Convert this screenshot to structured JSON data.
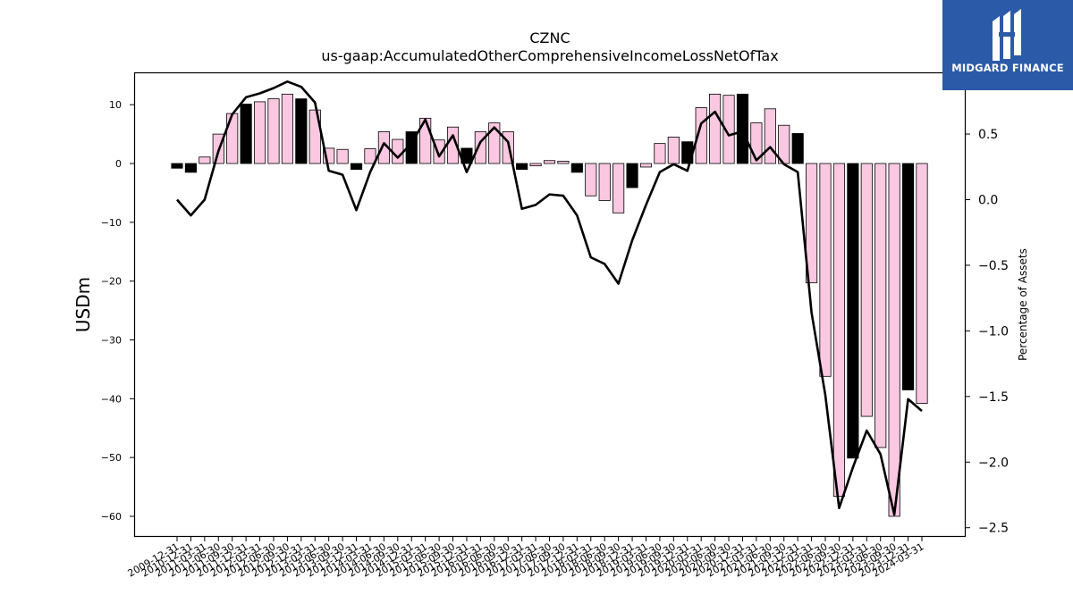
{
  "logo": {
    "text": "MIDGARD FINANCE",
    "icon": "midgard-logo-mark",
    "background": "#2b5aa8"
  },
  "chart_data": {
    "type": "bar",
    "title": "CZNC",
    "subtitle": "us-gaap:AccumulatedOtherComprehensiveIncomeLossNetOfTax",
    "ylabel": "USDm",
    "y2label": "Percentage of Assets",
    "ylim": [
      -63.5,
      15.5
    ],
    "y2lim": [
      -2.57,
      0.97
    ],
    "yticks": [
      10,
      0,
      -10,
      -20,
      -30,
      -40,
      -50,
      -60
    ],
    "y2ticks": [
      0.5,
      0.0,
      -0.5,
      -1.0,
      -1.5,
      -2.0,
      -2.5
    ],
    "ytick_labels": [
      "10",
      "0",
      "−10",
      "−20",
      "−30",
      "−40",
      "−50",
      "−60"
    ],
    "y2tick_labels": [
      "0.5",
      "0.0",
      "−0.5",
      "−1.0",
      "−1.5",
      "−2.0",
      "−2.5"
    ],
    "xtick_labels": [
      "2009-12-31",
      "2010-12-31",
      "2011-03-31",
      "2011-06-30",
      "2011-09-30",
      "2011-12-31",
      "2012-03-31",
      "2012-06-30",
      "2012-09-30",
      "2012-12-31",
      "2013-03-31",
      "2013-06-30",
      "2013-09-30",
      "2013-12-31",
      "2014-03-31",
      "2014-06-30",
      "2014-09-30",
      "2014-12-31",
      "2015-03-31",
      "2015-06-30",
      "2015-09-30",
      "2015-12-31",
      "2016-03-31",
      "2016-06-30",
      "2016-09-30",
      "2016-12-31",
      "2017-03-31",
      "2017-06-30",
      "2017-09-30",
      "2017-12-31",
      "2018-03-31",
      "2018-06-30",
      "2018-09-30",
      "2018-12-31",
      "2019-03-31",
      "2019-06-30",
      "2019-09-30",
      "2019-12-31",
      "2020-03-31",
      "2020-06-30",
      "2020-09-30",
      "2020-12-31",
      "2021-03-31",
      "2021-06-30",
      "2021-09-30",
      "2021-12-31",
      "2022-03-31",
      "2022-06-30",
      "2022-09-30",
      "2022-12-31",
      "2023-03-31",
      "2023-06-30",
      "2023-09-30",
      "2023-12-31",
      "2024-03-31"
    ],
    "categories": [
      "2009-12-31",
      "2010-12-31",
      "2011-03-31",
      "2011-06-30",
      "2011-09-30",
      "2011-12-31",
      "2012-03-31",
      "2012-06-30",
      "2012-09-30",
      "2012-12-31",
      "2013-03-31",
      "2013-06-30",
      "2013-09-30",
      "2013-12-31",
      "2014-03-31",
      "2014-06-30",
      "2014-09-30",
      "2014-12-31",
      "2015-03-31",
      "2015-06-30",
      "2015-09-30",
      "2015-12-31",
      "2016-03-31",
      "2016-06-30",
      "2016-09-30",
      "2016-12-31",
      "2017-03-31",
      "2017-06-30",
      "2017-09-30",
      "2017-12-31",
      "2018-03-31",
      "2018-06-30",
      "2018-09-30",
      "2018-12-31",
      "2019-03-31",
      "2019-06-30",
      "2019-09-30",
      "2019-12-31",
      "2020-03-31",
      "2020-06-30",
      "2020-09-30",
      "2020-12-31",
      "2021-03-31",
      "2021-06-30",
      "2021-09-30",
      "2021-12-31",
      "2022-03-31",
      "2022-06-30",
      "2022-09-30",
      "2022-12-31",
      "2023-03-31",
      "2023-06-30",
      "2023-09-30",
      "2023-12-31",
      "2024-03-31"
    ],
    "series": [
      {
        "type": "bar",
        "axis": "left",
        "values": [
          -0.8,
          -1.5,
          1.1,
          5.0,
          8.5,
          10.1,
          10.5,
          11.0,
          11.8,
          11.0,
          9.1,
          2.6,
          2.4,
          -1.0,
          2.5,
          5.4,
          4.1,
          5.4,
          7.7,
          4.0,
          6.2,
          2.6,
          5.4,
          6.9,
          5.4,
          -1.0,
          -0.4,
          0.5,
          0.4,
          -1.5,
          -5.5,
          -6.3,
          -8.4,
          -4.1,
          -0.6,
          3.4,
          4.5,
          3.7,
          9.5,
          11.8,
          11.6,
          11.8,
          6.9,
          9.3,
          6.5,
          5.1,
          -20.3,
          -36.2,
          -56.6,
          -50.1,
          -43.0,
          -48.3,
          -60.0,
          -38.5,
          -40.8
        ],
        "colors": [
          "#000000",
          "#000000",
          "#fac8e1",
          "#fac8e1",
          "#fac8e1",
          "#000000",
          "#fac8e1",
          "#fac8e1",
          "#fac8e1",
          "#000000",
          "#fac8e1",
          "#fac8e1",
          "#fac8e1",
          "#000000",
          "#fac8e1",
          "#fac8e1",
          "#fac8e1",
          "#000000",
          "#fac8e1",
          "#fac8e1",
          "#fac8e1",
          "#000000",
          "#fac8e1",
          "#fac8e1",
          "#fac8e1",
          "#000000",
          "#fac8e1",
          "#fac8e1",
          "#fac8e1",
          "#000000",
          "#fac8e1",
          "#fac8e1",
          "#fac8e1",
          "#000000",
          "#fac8e1",
          "#fac8e1",
          "#fac8e1",
          "#000000",
          "#fac8e1",
          "#fac8e1",
          "#fac8e1",
          "#000000",
          "#fac8e1",
          "#fac8e1",
          "#fac8e1",
          "#000000",
          "#fac8e1",
          "#fac8e1",
          "#fac8e1",
          "#000000",
          "#fac8e1",
          "#fac8e1",
          "#fac8e1",
          "#000000",
          "#fac8e1"
        ]
      },
      {
        "type": "line",
        "axis": "right",
        "color": "#000000",
        "values": [
          0.0,
          -0.12,
          0.0,
          0.37,
          0.65,
          0.78,
          0.81,
          0.85,
          0.9,
          0.86,
          0.74,
          0.22,
          0.19,
          -0.08,
          0.21,
          0.43,
          0.32,
          0.43,
          0.61,
          0.33,
          0.49,
          0.21,
          0.44,
          0.55,
          0.44,
          -0.07,
          -0.04,
          0.04,
          0.03,
          -0.12,
          -0.44,
          -0.49,
          -0.64,
          -0.31,
          -0.04,
          0.21,
          0.27,
          0.22,
          0.58,
          0.67,
          0.49,
          0.52,
          0.3,
          0.4,
          0.27,
          0.21,
          -0.86,
          -1.49,
          -2.35,
          -2.04,
          -1.76,
          -1.94,
          -2.4,
          -1.52,
          -1.61
        ]
      }
    ],
    "bar_edge_color": "#000000",
    "line_color": "#000000",
    "grid": false,
    "legend": "none"
  }
}
